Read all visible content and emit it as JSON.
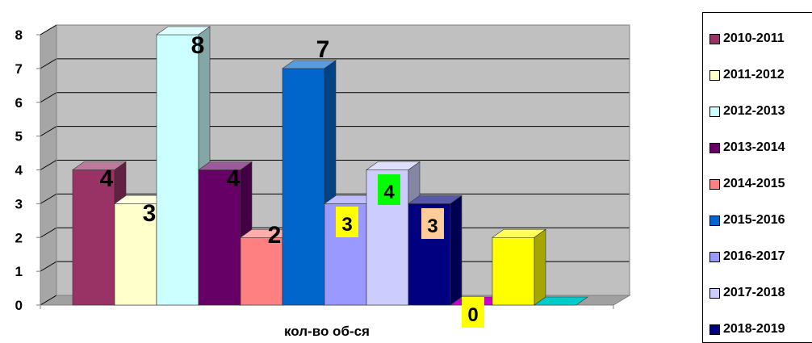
{
  "chart_data": {
    "type": "bar",
    "title": "",
    "xlabel": "кол-во об-ся",
    "ylabel": "",
    "ylim": [
      0,
      8
    ],
    "yticks": [
      "0",
      "1",
      "2",
      "3",
      "4",
      "5",
      "6",
      "7",
      "8"
    ],
    "grid": true,
    "legend_position": "right",
    "categories": [
      "кол-во об-ся"
    ],
    "series": [
      {
        "name": "2010-2011",
        "values": [
          4
        ],
        "label": "4",
        "color": "#993366",
        "label_bg": ""
      },
      {
        "name": "2011-2012",
        "values": [
          3
        ],
        "label": "3",
        "color": "#ffffcc",
        "label_bg": ""
      },
      {
        "name": "2012-2013",
        "values": [
          8
        ],
        "label": "8",
        "color": "#ccffff",
        "label_bg": ""
      },
      {
        "name": "2013-2014",
        "values": [
          4
        ],
        "label": "4",
        "color": "#660066",
        "label_bg": ""
      },
      {
        "name": "2014-2015",
        "values": [
          2
        ],
        "label": "2",
        "color": "#ff8080",
        "label_bg": ""
      },
      {
        "name": "2015-2016",
        "values": [
          7
        ],
        "label": "7",
        "color": "#0066cc",
        "label_bg": ""
      },
      {
        "name": "2016-2017",
        "values": [
          3
        ],
        "label": "3",
        "color": "#9999ff",
        "label_bg": "#ffff00"
      },
      {
        "name": "2017-2018",
        "values": [
          4
        ],
        "label": "4",
        "color": "#ccccff",
        "label_bg": "#00ff00"
      },
      {
        "name": "2018-2019",
        "values": [
          3
        ],
        "label": "3",
        "color": "#000080",
        "label_bg": "#ffcc99"
      },
      {
        "name": "",
        "values": [
          0
        ],
        "label": "0",
        "color": "#cc00cc",
        "label_bg": "#ffff00"
      },
      {
        "name": "",
        "values": [
          2
        ],
        "label": "",
        "color": "#ffff00",
        "label_bg": ""
      },
      {
        "name": "",
        "values": [
          0
        ],
        "label": "",
        "color": "#00cccc",
        "label_bg": ""
      }
    ]
  }
}
